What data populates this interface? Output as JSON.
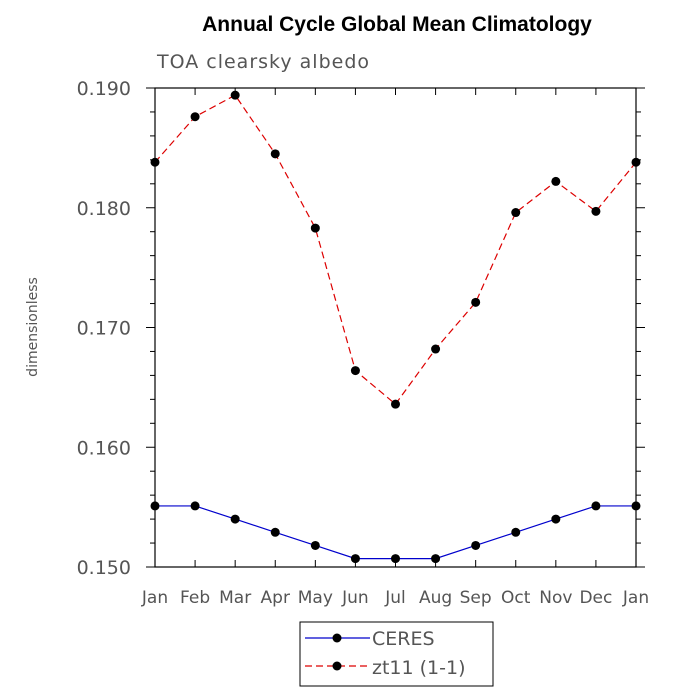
{
  "chart_data": {
    "type": "line",
    "title": "Annual Cycle Global Mean Climatology",
    "subtitle": "TOA clearsky albedo",
    "ylabel": "dimensionless",
    "ylim": [
      0.15,
      0.19
    ],
    "yticks": [
      "0.150",
      "0.160",
      "0.170",
      "0.180",
      "0.190"
    ],
    "categories": [
      "Jan",
      "Feb",
      "Mar",
      "Apr",
      "May",
      "Jun",
      "Jul",
      "Aug",
      "Sep",
      "Oct",
      "Nov",
      "Dec",
      "Jan"
    ],
    "series": [
      {
        "name": "CERES",
        "color": "#0000cc",
        "dash": "solid",
        "values": [
          0.1551,
          0.1551,
          0.154,
          0.1529,
          0.1518,
          0.1507,
          0.1507,
          0.1507,
          0.1518,
          0.1529,
          0.154,
          0.1551,
          0.1551
        ]
      },
      {
        "name": "zt11 (1-1)",
        "color": "#dd0000",
        "dash": "dashed",
        "values": [
          0.1838,
          0.1876,
          0.1894,
          0.1845,
          0.1783,
          0.1664,
          0.1636,
          0.1682,
          0.1721,
          0.1796,
          0.1822,
          0.1797,
          0.1838
        ]
      }
    ],
    "legend_position": "bottom-center",
    "grid": false
  }
}
